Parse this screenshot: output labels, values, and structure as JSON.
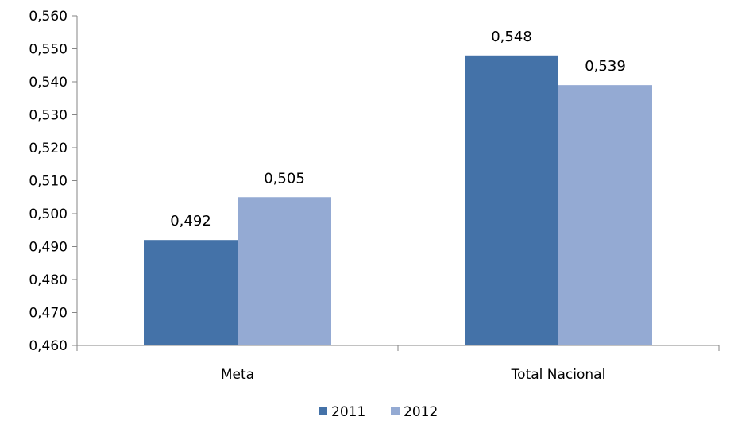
{
  "chart_data": {
    "type": "bar",
    "title": "",
    "xlabel": "",
    "ylabel": "",
    "categories": [
      "Meta",
      "Total Nacional"
    ],
    "series": [
      {
        "name": "2011",
        "values": [
          0.492,
          0.548
        ],
        "labels": [
          "0,492",
          "0,548"
        ],
        "color": "#4472a8"
      },
      {
        "name": "2012",
        "values": [
          0.505,
          0.539
        ],
        "labels": [
          "0,505",
          "0,539"
        ],
        "color": "#94aad3"
      }
    ],
    "ylim": [
      0.46,
      0.56
    ],
    "yticks": [
      0.46,
      0.47,
      0.48,
      0.49,
      0.5,
      0.51,
      0.52,
      0.53,
      0.54,
      0.55,
      0.56
    ],
    "ytick_labels": [
      "0,460",
      "0,470",
      "0,480",
      "0,490",
      "0,500",
      "0,510",
      "0,520",
      "0,530",
      "0,540",
      "0,550",
      "0,560"
    ],
    "grid": false,
    "legend_position": "bottom"
  }
}
